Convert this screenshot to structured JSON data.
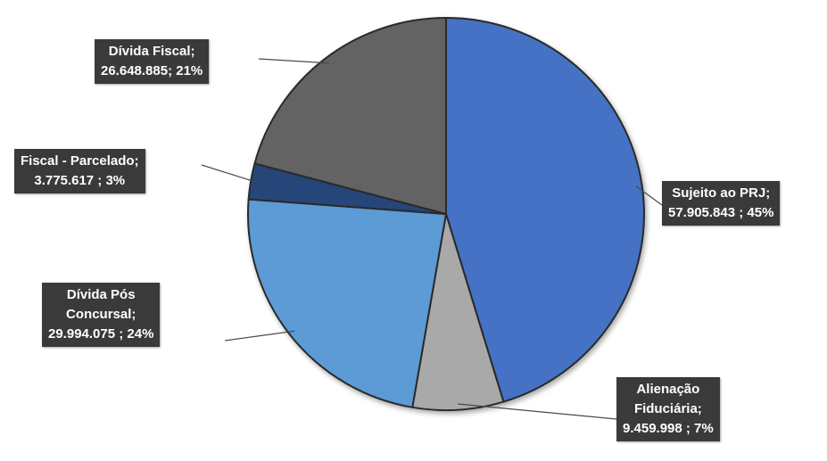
{
  "chart_data": {
    "type": "pie",
    "slices": [
      {
        "label": "Sujeito ao PRJ",
        "value": 57905843,
        "percent": 45,
        "color": "#4472c4",
        "lines": [
          "Sujeito ao PRJ;",
          "57.905.843 ; 45%"
        ]
      },
      {
        "label": "Alienação Fiduciária",
        "value": 9459998,
        "percent": 7,
        "color": "#a9a9a9",
        "lines": [
          "Alienação",
          "Fiduciária;",
          "9.459.998 ; 7%"
        ]
      },
      {
        "label": "Dívida Pós Concursal",
        "value": 29994075,
        "percent": 24,
        "color": "#5b9bd5",
        "lines": [
          "Dívida Pós",
          "Concursal;",
          "29.994.075 ; 24%"
        ]
      },
      {
        "label": "Fiscal - Parcelado",
        "value": 3775617,
        "percent": 3,
        "color": "#264478",
        "lines": [
          "Fiscal - Parcelado;",
          "3.775.617 ; 3%"
        ]
      },
      {
        "label": "Dívida  Fiscal",
        "value": 26648885,
        "percent": 21,
        "color": "#636363",
        "lines": [
          "Dívida  Fiscal;",
          "26.648.885; 21%"
        ]
      }
    ]
  }
}
